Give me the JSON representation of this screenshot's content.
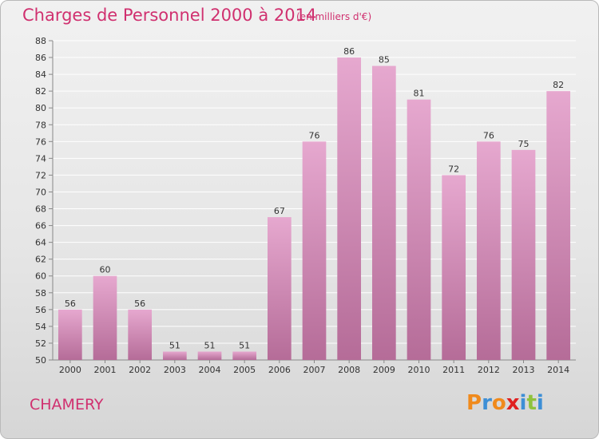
{
  "header": {
    "title": "Charges de Personnel 2000 à 2014",
    "subtitle": "(en milliers d'€)"
  },
  "footer": {
    "place": "CHAMERY",
    "logo_text": "Proxiti"
  },
  "colors": {
    "title": "#d0306f",
    "bar_top": "#e6a8cf",
    "bar_bottom": "#b56c98",
    "logo_letters": [
      "#f08a1c",
      "#3d8fd6",
      "#f08a1c",
      "#e02020",
      "#3d8fd6",
      "#8fc23c",
      "#3d8fd6"
    ]
  },
  "chart_data": {
    "type": "bar",
    "title": "Charges de Personnel 2000 à 2014",
    "subtitle": "(en milliers d'€)",
    "categories": [
      "2000",
      "2001",
      "2002",
      "2003",
      "2004",
      "2005",
      "2006",
      "2007",
      "2008",
      "2009",
      "2010",
      "2011",
      "2012",
      "2013",
      "2014"
    ],
    "values": [
      56,
      60,
      56,
      51,
      51,
      51,
      67,
      76,
      86,
      85,
      81,
      72,
      76,
      75,
      82
    ],
    "ylim": [
      50,
      88
    ],
    "yticks": [
      50,
      52,
      54,
      56,
      58,
      60,
      62,
      64,
      66,
      68,
      70,
      72,
      74,
      76,
      78,
      80,
      82,
      84,
      86,
      88
    ],
    "grid": true
  }
}
